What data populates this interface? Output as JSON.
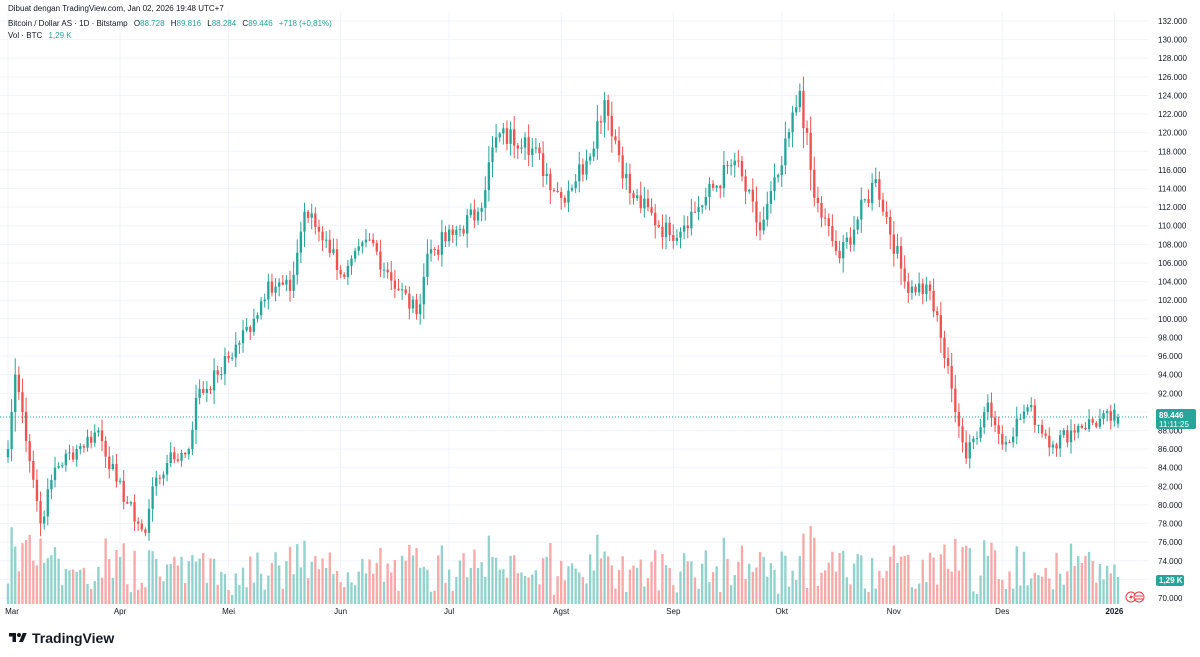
{
  "header": {
    "credit": "Dibuat dengan TradingView.com, Jan 02, 2026 19:48 UTC+7",
    "symbol": "Bitcoin / Dollar AS · 1D · Bitstamp",
    "o_label": "O",
    "o_value": "88.728",
    "h_label": "H",
    "h_value": "89.816",
    "l_label": "L",
    "l_value": "88.284",
    "c_label": "C",
    "c_value": "89.446",
    "change": "+718 (+0,81%)",
    "vol_label": "Vol · BTC",
    "vol_value": "1,29 K"
  },
  "price_tag": {
    "price": "89.446",
    "countdown": "11:11:25"
  },
  "volume_tag": "1,29 K",
  "footer": {
    "brand": "TradingView",
    "icons": [
      "lightning-icon",
      "us-flag-icon"
    ]
  },
  "colors": {
    "up": "#26a69a",
    "down": "#ef5350",
    "up_vol": "#92d2cc",
    "down_vol": "#f7a9a7",
    "grid": "#f0f3fa",
    "text": "#131722"
  },
  "chart_data": {
    "type": "candlestick",
    "symbol": "Bitcoin / Dollar AS",
    "interval": "1D",
    "exchange": "Bitstamp",
    "ylim": [
      70000,
      132000
    ],
    "y_ticks": [
      "70.000",
      "72.000",
      "74.000",
      "76.000",
      "78.000",
      "80.000",
      "82.000",
      "84.000",
      "86.000",
      "88.000",
      "90.000",
      "92.000",
      "94.000",
      "96.000",
      "98.000",
      "100.000",
      "102.000",
      "104.000",
      "106.000",
      "108.000",
      "110.000",
      "112.000",
      "114.000",
      "116.000",
      "118.000",
      "120.000",
      "122.000",
      "124.000",
      "126.000",
      "128.000",
      "130.000",
      "132.000"
    ],
    "x_ticks": [
      "Mar",
      "Apr",
      "Mei",
      "Jun",
      "Jul",
      "Agst",
      "Sep",
      "Okt",
      "Nov",
      "Des",
      "2026"
    ],
    "last": {
      "open": 88728,
      "high": 89816,
      "low": 88284,
      "close": 89446,
      "change": 718,
      "change_pct": 0.81
    },
    "closes_approx": [
      {
        "date": "2025-03-01",
        "close": 86000
      },
      {
        "date": "2025-03-03",
        "close": 94000
      },
      {
        "date": "2025-03-05",
        "close": 90000
      },
      {
        "date": "2025-03-10",
        "close": 78000
      },
      {
        "date": "2025-03-14",
        "close": 84000
      },
      {
        "date": "2025-03-20",
        "close": 86000
      },
      {
        "date": "2025-03-26",
        "close": 88000
      },
      {
        "date": "2025-03-31",
        "close": 82500
      },
      {
        "date": "2025-04-06",
        "close": 78000
      },
      {
        "date": "2025-04-08",
        "close": 77000
      },
      {
        "date": "2025-04-10",
        "close": 82000
      },
      {
        "date": "2025-04-14",
        "close": 84500
      },
      {
        "date": "2025-04-20",
        "close": 86000
      },
      {
        "date": "2025-04-22",
        "close": 91500
      },
      {
        "date": "2025-04-28",
        "close": 94000
      },
      {
        "date": "2025-05-08",
        "close": 100000
      },
      {
        "date": "2025-05-12",
        "close": 104000
      },
      {
        "date": "2025-05-18",
        "close": 103000
      },
      {
        "date": "2025-05-22",
        "close": 111500
      },
      {
        "date": "2025-05-28",
        "close": 108500
      },
      {
        "date": "2025-06-02",
        "close": 104500
      },
      {
        "date": "2025-06-09",
        "close": 108500
      },
      {
        "date": "2025-06-14",
        "close": 105000
      },
      {
        "date": "2025-06-22",
        "close": 100500
      },
      {
        "date": "2025-06-25",
        "close": 107000
      },
      {
        "date": "2025-07-02",
        "close": 109000
      },
      {
        "date": "2025-07-09",
        "close": 111500
      },
      {
        "date": "2025-07-14",
        "close": 119500
      },
      {
        "date": "2025-07-22",
        "close": 119500
      },
      {
        "date": "2025-08-01",
        "close": 113000
      },
      {
        "date": "2025-08-08",
        "close": 117000
      },
      {
        "date": "2025-08-13",
        "close": 123500
      },
      {
        "date": "2025-08-20",
        "close": 113500
      },
      {
        "date": "2025-08-31",
        "close": 109000
      },
      {
        "date": "2025-09-08",
        "close": 112000
      },
      {
        "date": "2025-09-18",
        "close": 117000
      },
      {
        "date": "2025-09-25",
        "close": 109500
      },
      {
        "date": "2025-10-01",
        "close": 116500
      },
      {
        "date": "2025-10-06",
        "close": 124500
      },
      {
        "date": "2025-10-10",
        "close": 113000
      },
      {
        "date": "2025-10-17",
        "close": 106500
      },
      {
        "date": "2025-10-27",
        "close": 115000
      },
      {
        "date": "2025-11-04",
        "close": 104000
      },
      {
        "date": "2025-11-11",
        "close": 103000
      },
      {
        "date": "2025-11-17",
        "close": 92500
      },
      {
        "date": "2025-11-21",
        "close": 85000
      },
      {
        "date": "2025-11-27",
        "close": 91000
      },
      {
        "date": "2025-12-01",
        "close": 86500
      },
      {
        "date": "2025-12-08",
        "close": 90500
      },
      {
        "date": "2025-12-15",
        "close": 86500
      },
      {
        "date": "2025-12-22",
        "close": 88500
      },
      {
        "date": "2026-01-02",
        "close": 89446
      }
    ]
  }
}
